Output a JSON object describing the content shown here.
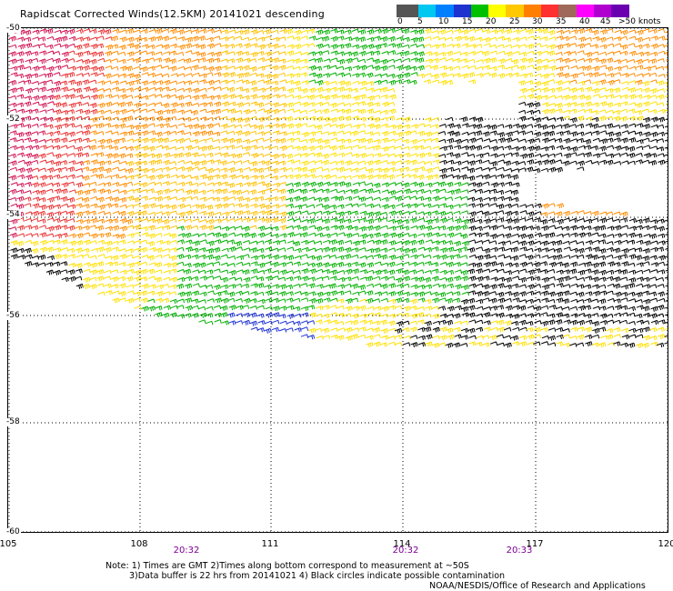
{
  "header": {
    "title": "Rapidscat Corrected Winds(12.5KM) 20141021 descending"
  },
  "legend": {
    "colors": [
      "#555555",
      "#00c8f0",
      "#0080ff",
      "#1e32d0",
      "#00c000",
      "#ffff00",
      "#ffc800",
      "#ff8000",
      "#ff3030",
      "#a0685a",
      "#ff00ff",
      "#b000d0",
      "#6a00b0"
    ],
    "labels": [
      "0",
      "5",
      "10",
      "15",
      "20",
      "25",
      "30",
      "35",
      "40",
      "45",
      ">50 knots"
    ]
  },
  "axes": {
    "lon_labels": [
      "105",
      "108",
      "111",
      "114",
      "117",
      "120"
    ],
    "lat_labels": [
      "-50",
      "-52",
      "-54",
      "-56",
      "-58",
      "-60"
    ]
  },
  "times": [
    "20:32",
    "20:32",
    "20:33"
  ],
  "notes": {
    "line1": "Note: 1) Times are GMT 2)Times along bottom correspond to measurement at ~50S",
    "line2": "3)Data buffer is 22 hrs from 20141021 4) Black circles indicate possible contamination",
    "line3": "NOAA/NESDIS/Office of Research and Applications"
  },
  "wind_field": {
    "barb_colors": {
      "black": "#000000",
      "blue": "#1e32d0",
      "green": "#00b000",
      "yellow": "#ffe000",
      "light_orange": "#ffc000",
      "orange": "#ff8c00",
      "red": "#e83030",
      "dark_red": "#d01050"
    }
  }
}
